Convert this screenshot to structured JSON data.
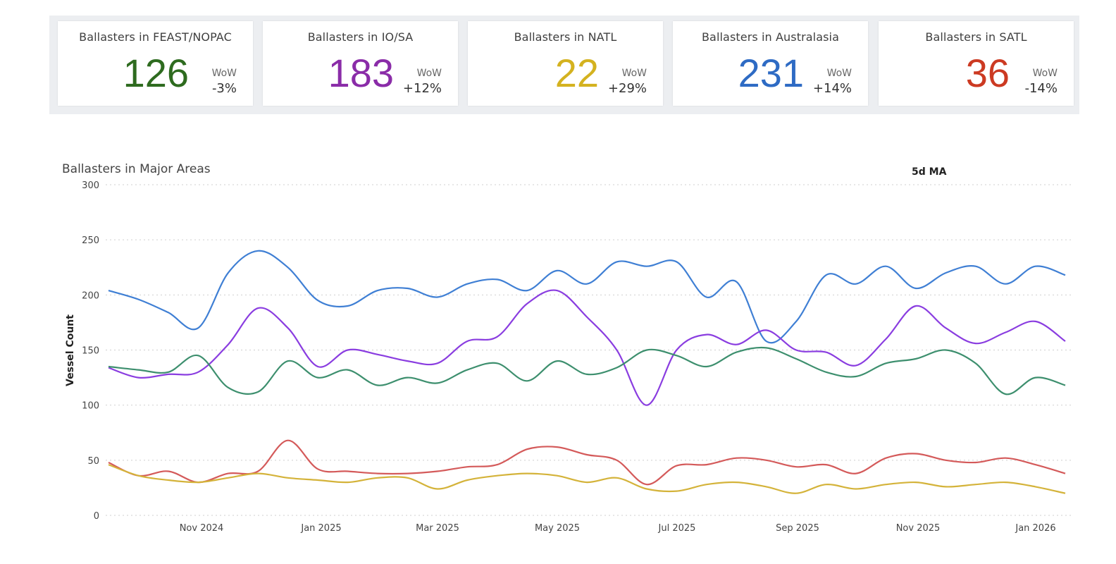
{
  "kpis": [
    {
      "title": "Ballasters in FEAST/NOPAC",
      "value": "126",
      "wow_label": "WoW",
      "wow": "-3%",
      "color": "#2e6b1f"
    },
    {
      "title": "Ballasters in IO/SA",
      "value": "183",
      "wow_label": "WoW",
      "wow": "+12%",
      "color": "#8a2ca8"
    },
    {
      "title": "Ballasters in NATL",
      "value": "22",
      "wow_label": "WoW",
      "wow": "+29%",
      "color": "#d4b21f"
    },
    {
      "title": "Ballasters in Australasia",
      "value": "231",
      "wow_label": "WoW",
      "wow": "+14%",
      "color": "#2e6bc4"
    },
    {
      "title": "Ballasters in SATL",
      "value": "36",
      "wow_label": "WoW",
      "wow": "-14%",
      "color": "#cc3a22"
    }
  ],
  "chart_data": {
    "type": "line",
    "title": "Ballasters in Major Areas",
    "subtitle": "5d MA",
    "ylabel": "Vessel Count",
    "xlabel": "",
    "ylim": [
      0,
      300
    ],
    "yticks": [
      0,
      50,
      100,
      150,
      200,
      250,
      300
    ],
    "xticks": [
      "Nov 2024",
      "Jan 2025",
      "Mar 2025",
      "May 2025",
      "Jul 2025",
      "Sep 2025",
      "Nov 2025",
      "Jan 2026"
    ],
    "x_start": "Sep 2024 (late)",
    "x_end": "Jan 2026",
    "points_per_series": 33,
    "series": [
      {
        "name": "Australasia",
        "color": "#3f7fd4",
        "values": [
          204,
          196,
          184,
          170,
          220,
          240,
          225,
          195,
          190,
          204,
          206,
          198,
          210,
          214,
          204,
          222,
          210,
          230,
          226,
          230,
          198,
          212,
          158,
          176,
          218,
          210,
          226,
          206,
          220,
          226,
          210,
          226,
          218
        ]
      },
      {
        "name": "IO/SA",
        "color": "#8a3de0",
        "values": [
          134,
          125,
          128,
          130,
          155,
          188,
          170,
          135,
          150,
          146,
          140,
          138,
          158,
          162,
          192,
          204,
          180,
          150,
          100,
          150,
          164,
          155,
          168,
          150,
          148,
          136,
          160,
          190,
          170,
          156,
          166,
          176,
          158
        ]
      },
      {
        "name": "FEAST/NOPAC",
        "color": "#3d8f6e",
        "values": [
          135,
          132,
          130,
          145,
          116,
          112,
          140,
          125,
          132,
          118,
          125,
          120,
          132,
          138,
          122,
          140,
          128,
          134,
          150,
          145,
          135,
          148,
          152,
          142,
          130,
          126,
          138,
          142,
          150,
          138,
          110,
          125,
          118
        ]
      },
      {
        "name": "SATL",
        "color": "#d45a5a",
        "values": [
          48,
          36,
          40,
          30,
          38,
          40,
          68,
          42,
          40,
          38,
          38,
          40,
          44,
          46,
          60,
          62,
          55,
          50,
          28,
          45,
          46,
          52,
          50,
          44,
          46,
          38,
          52,
          56,
          50,
          48,
          52,
          46,
          38
        ]
      },
      {
        "name": "NATL",
        "color": "#d4b33a",
        "values": [
          46,
          36,
          32,
          30,
          34,
          38,
          34,
          32,
          30,
          34,
          34,
          24,
          32,
          36,
          38,
          36,
          30,
          34,
          24,
          22,
          28,
          30,
          26,
          20,
          28,
          24,
          28,
          30,
          26,
          28,
          30,
          26,
          20
        ]
      }
    ]
  }
}
